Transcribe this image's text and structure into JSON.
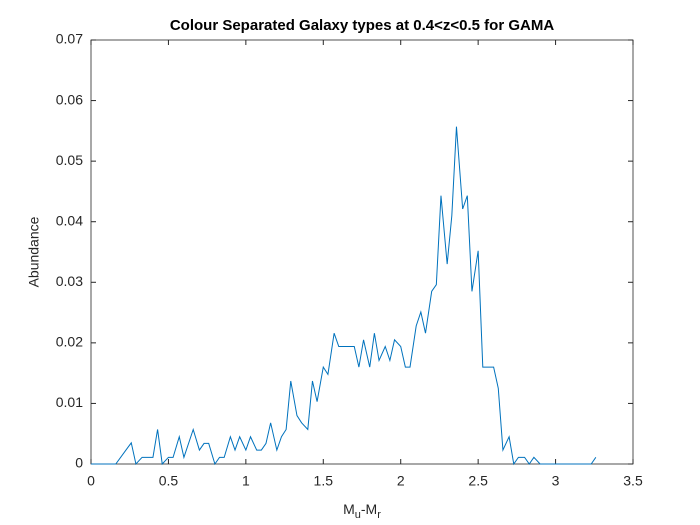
{
  "chart_data": {
    "type": "line",
    "title": "Colour Separated Galaxy types at 0.4<z<0.5 for GAMA",
    "xlabel": [
      "M",
      "u",
      "-M",
      "r"
    ],
    "ylabel": "Abundance",
    "xlim": [
      0,
      3.5
    ],
    "ylim": [
      0,
      0.07
    ],
    "xticks": [
      0,
      0.5,
      1,
      1.5,
      2,
      2.5,
      3,
      3.5
    ],
    "yticks": [
      0,
      0.01,
      0.02,
      0.03,
      0.04,
      0.05,
      0.06,
      0.07
    ],
    "series": [
      {
        "color": "#0072bd",
        "x": [
          0,
          0.16,
          0.26,
          0.29,
          0.33,
          0.4,
          0.43,
          0.46,
          0.5,
          0.53,
          0.57,
          0.6,
          0.66,
          0.7,
          0.73,
          0.76,
          0.8,
          0.83,
          0.86,
          0.9,
          0.93,
          0.96,
          1.0,
          1.03,
          1.07,
          1.1,
          1.13,
          1.16,
          1.2,
          1.23,
          1.26,
          1.29,
          1.33,
          1.36,
          1.4,
          1.43,
          1.46,
          1.5,
          1.53,
          1.57,
          1.6,
          1.63,
          1.66,
          1.7,
          1.73,
          1.76,
          1.8,
          1.83,
          1.86,
          1.9,
          1.93,
          1.96,
          2.0,
          2.03,
          2.06,
          2.1,
          2.13,
          2.16,
          2.2,
          2.23,
          2.26,
          2.3,
          2.33,
          2.36,
          2.4,
          2.43,
          2.46,
          2.5,
          2.53,
          2.56,
          2.6,
          2.63,
          2.66,
          2.7,
          2.73,
          2.76,
          2.8,
          2.83,
          2.86,
          2.9,
          3.0,
          3.23,
          3.26
        ],
        "values": [
          0,
          0,
          0.0035,
          0,
          0.0011,
          0.0011,
          0.0057,
          0,
          0.0011,
          0.0011,
          0.0045,
          0.0011,
          0.0057,
          0.0023,
          0.0034,
          0.0034,
          0,
          0.0011,
          0.0011,
          0.0045,
          0.0023,
          0.0045,
          0.0023,
          0.0045,
          0.0023,
          0.0023,
          0.0034,
          0.0068,
          0.0023,
          0.0045,
          0.0057,
          0.0137,
          0.008,
          0.0068,
          0.0057,
          0.0137,
          0.0103,
          0.016,
          0.0148,
          0.0216,
          0.0194,
          0.0194,
          0.0194,
          0.0194,
          0.016,
          0.0205,
          0.016,
          0.0216,
          0.0171,
          0.0194,
          0.0171,
          0.0205,
          0.0194,
          0.016,
          0.016,
          0.0228,
          0.0251,
          0.0216,
          0.0285,
          0.0296,
          0.0443,
          0.033,
          0.041,
          0.0557,
          0.0421,
          0.0443,
          0.0285,
          0.0352,
          0.016,
          0.016,
          0.016,
          0.0125,
          0.0023,
          0.0045,
          0,
          0.0011,
          0.0011,
          0,
          0.0011,
          0,
          0,
          0,
          0.0011
        ]
      }
    ]
  }
}
